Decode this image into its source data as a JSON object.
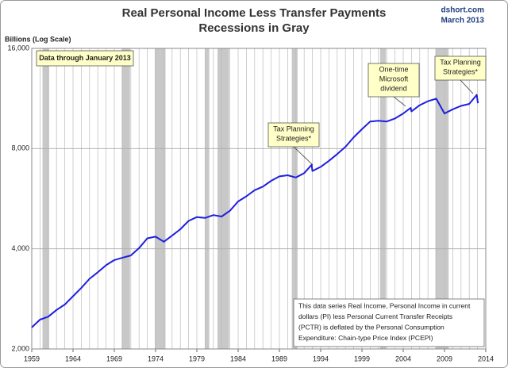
{
  "chart_data": {
    "type": "line",
    "title": [
      "Real Personal Income Less Transfer Payments",
      "Recessions in Gray"
    ],
    "source": "dshort.com",
    "date": "March 2013",
    "y_label": "Billions (Log Scale)",
    "log_scale": true,
    "grid": true,
    "color": "#1f1fe0",
    "xlim": [
      1959,
      2014
    ],
    "xticks": [
      1959,
      1964,
      1969,
      1974,
      1979,
      1984,
      1989,
      1994,
      1999,
      2004,
      2009,
      2014
    ],
    "ylim": [
      2000,
      16000
    ],
    "yticks": [
      {
        "value": 2000,
        "label": "2,000"
      },
      {
        "value": 4000,
        "label": "4,000"
      },
      {
        "value": 8000,
        "label": "8,000"
      },
      {
        "value": 16000,
        "label": "16,000"
      }
    ],
    "recessions": [
      [
        1960.3,
        1961.1
      ],
      [
        1969.9,
        1970.9
      ],
      [
        1973.9,
        1975.2
      ],
      [
        1980.0,
        1980.5
      ],
      [
        1981.5,
        1982.9
      ],
      [
        1990.5,
        1991.2
      ],
      [
        2001.2,
        2001.9
      ],
      [
        2007.9,
        2009.5
      ]
    ],
    "x": [
      1959,
      1960,
      1961,
      1962,
      1963,
      1964,
      1965,
      1966,
      1967,
      1968,
      1969,
      1970,
      1971,
      1972,
      1973,
      1974,
      1975,
      1976,
      1977,
      1978,
      1979,
      1980,
      1981,
      1982,
      1983,
      1984,
      1985,
      1986,
      1987,
      1988,
      1989,
      1990,
      1991,
      1992,
      1992.9,
      1993,
      1994,
      1995,
      1996,
      1997,
      1998,
      1999,
      2000,
      2001,
      2002,
      2003,
      2004,
      2004.9,
      2005,
      2006,
      2007,
      2008,
      2009,
      2010,
      2011,
      2012,
      2012.9,
      2013.05
    ],
    "values": [
      2320,
      2450,
      2500,
      2620,
      2720,
      2880,
      3050,
      3250,
      3400,
      3570,
      3700,
      3760,
      3820,
      4020,
      4300,
      4350,
      4200,
      4380,
      4580,
      4850,
      4980,
      4950,
      5050,
      5000,
      5200,
      5550,
      5750,
      6000,
      6150,
      6400,
      6600,
      6650,
      6550,
      6750,
      7150,
      6850,
      7050,
      7350,
      7700,
      8100,
      8650,
      9150,
      9650,
      9700,
      9650,
      9850,
      10200,
      10600,
      10350,
      10800,
      11100,
      11300,
      10200,
      10500,
      10750,
      10900,
      11600,
      10950
    ],
    "callouts": [
      {
        "lines": [
          "Data through January 2013"
        ]
      },
      {
        "lines": [
          "Tax Planning",
          "Strategies*"
        ]
      },
      {
        "lines": [
          "One-time",
          "Microsoft",
          "dividend"
        ]
      },
      {
        "lines": [
          "Tax Planning",
          "Strategies*"
        ]
      }
    ],
    "note": [
      "This data series  Real Income, Personal Income in current",
      "dollars  (PI) less Personal Current Transfer Receipts",
      "(PCTR) is deflated by the Personal Consumption",
      "Expenditure: Chain-type Price Index (PCEPI)"
    ]
  }
}
